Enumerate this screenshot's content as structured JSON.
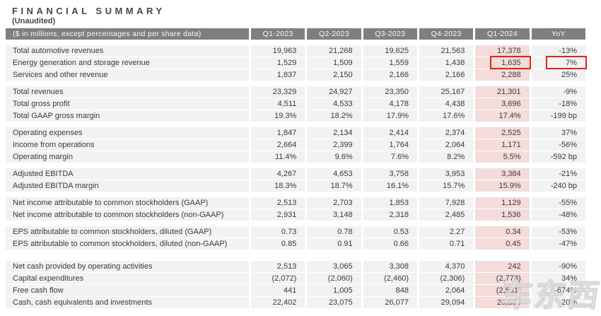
{
  "title": "FINANCIAL SUMMARY",
  "subtitle": "(Unaudited)",
  "watermark": {
    "text": "车东西"
  },
  "colors": {
    "header_bg": "#7f7f7f",
    "row_bg": "#f2f2f2",
    "q1_2024_highlight": "#f3dcda",
    "annotation_red": "#e2231a"
  },
  "table": {
    "header": [
      "($ in millions, except percentages and per share data)",
      "Q1-2023",
      "Q2-2023",
      "Q3-2023",
      "Q4-2023",
      "Q1-2024",
      "YoY"
    ],
    "sections": [
      {
        "rows": [
          {
            "label": "Total automotive revenues",
            "values": [
              "19,963",
              "21,268",
              "19,625",
              "21,563",
              "17,378",
              "-13%"
            ]
          },
          {
            "label": "Energy generation and storage revenue",
            "values": [
              "1,529",
              "1,509",
              "1,559",
              "1,438",
              "1,635",
              "7%"
            ],
            "boxed": [
              4,
              5
            ]
          },
          {
            "label": "Services and other revenue",
            "values": [
              "1,837",
              "2,150",
              "2,166",
              "2,166",
              "2,288",
              "25%"
            ]
          }
        ]
      },
      {
        "rows": [
          {
            "label": "Total revenues",
            "values": [
              "23,329",
              "24,927",
              "23,350",
              "25,167",
              "21,301",
              "-9%"
            ]
          },
          {
            "label": "Total gross profit",
            "values": [
              "4,511",
              "4,533",
              "4,178",
              "4,438",
              "3,696",
              "-18%"
            ]
          },
          {
            "label": "Total GAAP gross margin",
            "values": [
              "19.3%",
              "18.2%",
              "17.9%",
              "17.6%",
              "17.4%",
              "-199 bp"
            ]
          }
        ]
      },
      {
        "rows": [
          {
            "label": "Operating expenses",
            "values": [
              "1,847",
              "2,134",
              "2,414",
              "2,374",
              "2,525",
              "37%"
            ]
          },
          {
            "label": "Income from operations",
            "values": [
              "2,664",
              "2,399",
              "1,764",
              "2,064",
              "1,171",
              "-56%"
            ]
          },
          {
            "label": "Operating margin",
            "values": [
              "11.4%",
              "9.6%",
              "7.6%",
              "8.2%",
              "5.5%",
              "-592 bp"
            ]
          }
        ]
      },
      {
        "rows": [
          {
            "label": "Adjusted EBITDA",
            "values": [
              "4,267",
              "4,653",
              "3,758",
              "3,953",
              "3,384",
              "-21%"
            ]
          },
          {
            "label": "Adjusted EBITDA margin",
            "values": [
              "18.3%",
              "18.7%",
              "16.1%",
              "15.7%",
              "15.9%",
              "-240 bp"
            ]
          }
        ]
      },
      {
        "rows": [
          {
            "label": "Net income attributable to common stockholders (GAAP)",
            "values": [
              "2,513",
              "2,703",
              "1,853",
              "7,928",
              "1,129",
              "-55%"
            ]
          },
          {
            "label": "Net income attributable to common stockholders (non-GAAP)",
            "values": [
              "2,931",
              "3,148",
              "2,318",
              "2,485",
              "1,536",
              "-48%"
            ]
          }
        ]
      },
      {
        "rows": [
          {
            "label": "EPS attributable to common stockholders, diluted (GAAP)",
            "values": [
              "0.73",
              "0.78",
              "0.53",
              "2.27",
              "0.34",
              "-53%"
            ]
          },
          {
            "label": "EPS attributable to common stockholders, diluted (non-GAAP)",
            "values": [
              "0.85",
              "0.91",
              "0.66",
              "0.71",
              "0.45",
              "-47%"
            ]
          }
        ]
      },
      {
        "rows": [
          {
            "label": "Net cash provided by operating activities",
            "values": [
              "2,513",
              "3,065",
              "3,308",
              "4,370",
              "242",
              "-90%"
            ]
          },
          {
            "label": "Capital expenditures",
            "values": [
              "(2,072)",
              "(2,060)",
              "(2,460)",
              "(2,306)",
              "(2,773)",
              "34%"
            ]
          },
          {
            "label": "Free cash flow",
            "values": [
              "441",
              "1,005",
              "848",
              "2,064",
              "(2,531)",
              "-674%"
            ]
          },
          {
            "label": "Cash, cash equivalents and investments",
            "values": [
              "22,402",
              "23,075",
              "26,077",
              "29,094",
              "26,863",
              "20%"
            ]
          }
        ]
      }
    ]
  }
}
